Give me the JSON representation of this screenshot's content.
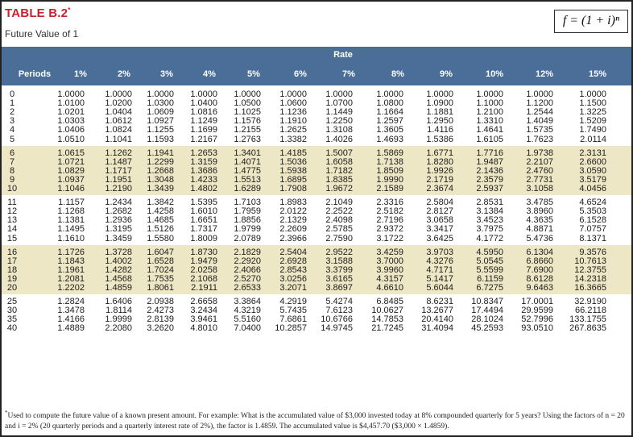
{
  "header": {
    "table_label": "TABLE B.2",
    "table_mark": "*",
    "subtitle": "Future Value of 1",
    "formula": "f = (1 + i)ⁿ"
  },
  "table": {
    "rate_label": "Rate",
    "periods_label": "Periods",
    "rates": [
      "1%",
      "2%",
      "3%",
      "4%",
      "5%",
      "6%",
      "7%",
      "8%",
      "9%",
      "10%",
      "12%",
      "15%"
    ],
    "rows": [
      {
        "period": "0",
        "values": [
          "1.0000",
          "1.0000",
          "1.0000",
          "1.0000",
          "1.0000",
          "1.0000",
          "1.0000",
          "1.0000",
          "1.0000",
          "1.0000",
          "1.0000",
          "1.0000"
        ]
      },
      {
        "period": "1",
        "values": [
          "1.0100",
          "1.0200",
          "1.0300",
          "1.0400",
          "1.0500",
          "1.0600",
          "1.0700",
          "1.0800",
          "1.0900",
          "1.1000",
          "1.1200",
          "1.1500"
        ]
      },
      {
        "period": "2",
        "values": [
          "1.0201",
          "1.0404",
          "1.0609",
          "1.0816",
          "1.1025",
          "1.1236",
          "1.1449",
          "1.1664",
          "1.1881",
          "1.2100",
          "1.2544",
          "1.3225"
        ]
      },
      {
        "period": "3",
        "values": [
          "1.0303",
          "1.0612",
          "1.0927",
          "1.1249",
          "1.1576",
          "1.1910",
          "1.2250",
          "1.2597",
          "1.2950",
          "1.3310",
          "1.4049",
          "1.5209"
        ]
      },
      {
        "period": "4",
        "values": [
          "1.0406",
          "1.0824",
          "1.1255",
          "1.1699",
          "1.2155",
          "1.2625",
          "1.3108",
          "1.3605",
          "1.4116",
          "1.4641",
          "1.5735",
          "1.7490"
        ]
      },
      {
        "period": "5",
        "values": [
          "1.0510",
          "1.1041",
          "1.1593",
          "1.2167",
          "1.2763",
          "1.3382",
          "1.4026",
          "1.4693",
          "1.5386",
          "1.6105",
          "1.7623",
          "2.0114"
        ]
      },
      {
        "period": "6",
        "values": [
          "1.0615",
          "1.1262",
          "1.1941",
          "1.2653",
          "1.3401",
          "1.4185",
          "1.5007",
          "1.5869",
          "1.6771",
          "1.7716",
          "1.9738",
          "2.3131"
        ]
      },
      {
        "period": "7",
        "values": [
          "1.0721",
          "1.1487",
          "1.2299",
          "1.3159",
          "1.4071",
          "1.5036",
          "1.6058",
          "1.7138",
          "1.8280",
          "1.9487",
          "2.2107",
          "2.6600"
        ]
      },
      {
        "period": "8",
        "values": [
          "1.0829",
          "1.1717",
          "1.2668",
          "1.3686",
          "1.4775",
          "1.5938",
          "1.7182",
          "1.8509",
          "1.9926",
          "2.1436",
          "2.4760",
          "3.0590"
        ]
      },
      {
        "period": "9",
        "values": [
          "1.0937",
          "1.1951",
          "1.3048",
          "1.4233",
          "1.5513",
          "1.6895",
          "1.8385",
          "1.9990",
          "2.1719",
          "2.3579",
          "2.7731",
          "3.5179"
        ]
      },
      {
        "period": "10",
        "values": [
          "1.1046",
          "1.2190",
          "1.3439",
          "1.4802",
          "1.6289",
          "1.7908",
          "1.9672",
          "2.1589",
          "2.3674",
          "2.5937",
          "3.1058",
          "4.0456"
        ]
      },
      {
        "period": "11",
        "values": [
          "1.1157",
          "1.2434",
          "1.3842",
          "1.5395",
          "1.7103",
          "1.8983",
          "2.1049",
          "2.3316",
          "2.5804",
          "2.8531",
          "3.4785",
          "4.6524"
        ]
      },
      {
        "period": "12",
        "values": [
          "1.1268",
          "1.2682",
          "1.4258",
          "1.6010",
          "1.7959",
          "2.0122",
          "2.2522",
          "2.5182",
          "2.8127",
          "3.1384",
          "3.8960",
          "5.3503"
        ]
      },
      {
        "period": "13",
        "values": [
          "1.1381",
          "1.2936",
          "1.4685",
          "1.6651",
          "1.8856",
          "2.1329",
          "2.4098",
          "2.7196",
          "3.0658",
          "3.4523",
          "4.3635",
          "6.1528"
        ]
      },
      {
        "period": "14",
        "values": [
          "1.1495",
          "1.3195",
          "1.5126",
          "1.7317",
          "1.9799",
          "2.2609",
          "2.5785",
          "2.9372",
          "3.3417",
          "3.7975",
          "4.8871",
          "7.0757"
        ]
      },
      {
        "period": "15",
        "values": [
          "1.1610",
          "1.3459",
          "1.5580",
          "1.8009",
          "2.0789",
          "2.3966",
          "2.7590",
          "3.1722",
          "3.6425",
          "4.1772",
          "5.4736",
          "8.1371"
        ]
      },
      {
        "period": "16",
        "values": [
          "1.1726",
          "1.3728",
          "1.6047",
          "1.8730",
          "2.1829",
          "2.5404",
          "2.9522",
          "3.4259",
          "3.9703",
          "4.5950",
          "6.1304",
          "9.3576"
        ]
      },
      {
        "period": "17",
        "values": [
          "1.1843",
          "1.4002",
          "1.6528",
          "1.9479",
          "2.2920",
          "2.6928",
          "3.1588",
          "3.7000",
          "4.3276",
          "5.0545",
          "6.8660",
          "10.7613"
        ]
      },
      {
        "period": "18",
        "values": [
          "1.1961",
          "1.4282",
          "1.7024",
          "2.0258",
          "2.4066",
          "2.8543",
          "3.3799",
          "3.9960",
          "4.7171",
          "5.5599",
          "7.6900",
          "12.3755"
        ]
      },
      {
        "period": "19",
        "values": [
          "1.2081",
          "1.4568",
          "1.7535",
          "2.1068",
          "2.5270",
          "3.0256",
          "3.6165",
          "4.3157",
          "5.1417",
          "6.1159",
          "8.6128",
          "14.2318"
        ]
      },
      {
        "period": "20",
        "values": [
          "1.2202",
          "1.4859",
          "1.8061",
          "2.1911",
          "2.6533",
          "3.2071",
          "3.8697",
          "4.6610",
          "5.6044",
          "6.7275",
          "9.6463",
          "16.3665"
        ]
      },
      {
        "period": "25",
        "values": [
          "1.2824",
          "1.6406",
          "2.0938",
          "2.6658",
          "3.3864",
          "4.2919",
          "5.4274",
          "6.8485",
          "8.6231",
          "10.8347",
          "17.0001",
          "32.9190"
        ]
      },
      {
        "period": "30",
        "values": [
          "1.3478",
          "1.8114",
          "2.4273",
          "3.2434",
          "4.3219",
          "5.7435",
          "7.6123",
          "10.0627",
          "13.2677",
          "17.4494",
          "29.9599",
          "66.2118"
        ]
      },
      {
        "period": "35",
        "values": [
          "1.4166",
          "1.9999",
          "2.8139",
          "3.9461",
          "5.5160",
          "7.6861",
          "10.6766",
          "14.7853",
          "20.4140",
          "28.1024",
          "52.7996",
          "133.1755"
        ]
      },
      {
        "period": "40",
        "values": [
          "1.4889",
          "2.2080",
          "3.2620",
          "4.8010",
          "7.0400",
          "10.2857",
          "14.9745",
          "21.7245",
          "31.4094",
          "45.2593",
          "93.0510",
          "267.8635"
        ]
      }
    ]
  },
  "footnote": {
    "mark": "*",
    "text": "Used to compute the future value of a known present amount. For example: What is the accumulated value of $3,000 invested today at 8% compounded quarterly for 5 years? Using the factors of n = 20 and i = 2% (20 quarterly periods and a quarterly interest rate of 2%), the factor is 1.4859. The accumulated value is $4,457.70 ($3,000 × 1.4859)."
  },
  "colors": {
    "title_red": "#c8202c",
    "header_blue": "#4a6e97",
    "band_tan": "#ede7c6"
  }
}
